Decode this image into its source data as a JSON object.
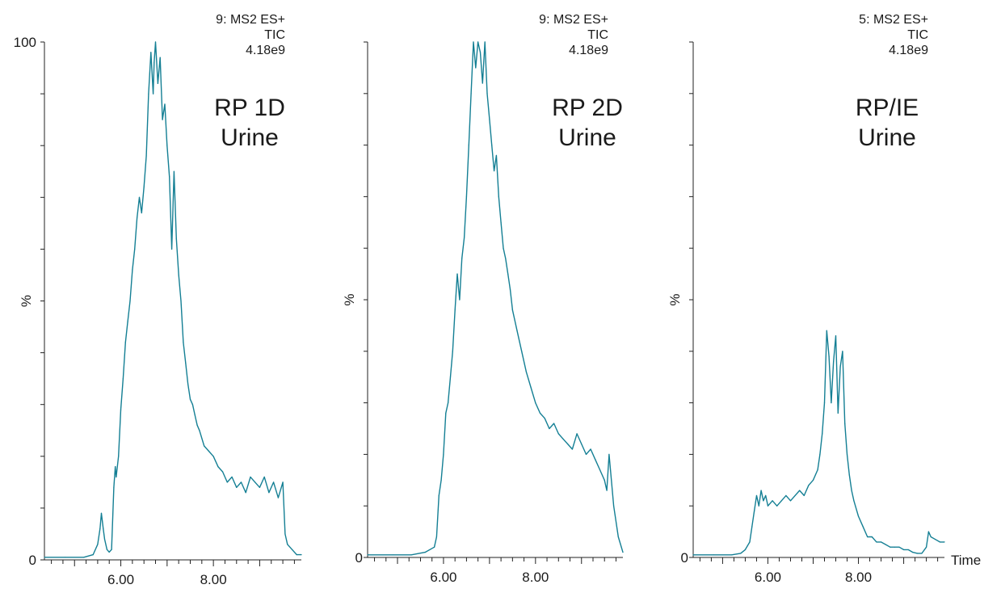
{
  "style": {
    "trace_color": "#147f94",
    "axis_color": "#222222"
  },
  "chart_data": [
    {
      "type": "line",
      "header": [
        "9: MS2 ES+",
        "TIC",
        "4.18e9"
      ],
      "sample_label": [
        "RP 1D",
        "Urine"
      ],
      "ylabel": "%",
      "y_ticks": [
        "100",
        "0"
      ],
      "x_ticks": [
        "6.00",
        "8.00"
      ],
      "xlabel": "",
      "xlim": [
        4.35,
        9.9
      ],
      "ylim": [
        0,
        100
      ],
      "series": [
        {
          "x": [
            4.35,
            4.8,
            5.2,
            5.4,
            5.5,
            5.55,
            5.58,
            5.62,
            5.65,
            5.7,
            5.75,
            5.8,
            5.85,
            5.88,
            5.9,
            5.95,
            6.0,
            6.05,
            6.1,
            6.15,
            6.2,
            6.25,
            6.3,
            6.35,
            6.4,
            6.45,
            6.5,
            6.55,
            6.6,
            6.65,
            6.7,
            6.72,
            6.75,
            6.8,
            6.85,
            6.9,
            6.95,
            7.0,
            7.05,
            7.1,
            7.15,
            7.2,
            7.25,
            7.3,
            7.35,
            7.4,
            7.45,
            7.5,
            7.55,
            7.6,
            7.65,
            7.7,
            7.8,
            7.9,
            8.0,
            8.1,
            8.2,
            8.3,
            8.4,
            8.5,
            8.6,
            8.7,
            8.8,
            8.9,
            9.0,
            9.1,
            9.2,
            9.3,
            9.4,
            9.5,
            9.55,
            9.6,
            9.7,
            9.8,
            9.9
          ],
          "y": [
            0.5,
            0.5,
            0.5,
            1,
            3,
            6,
            9,
            6,
            4,
            2,
            1.5,
            2,
            14,
            18,
            16,
            20,
            29,
            35,
            42,
            46,
            50,
            56,
            60,
            66,
            70,
            67,
            72,
            78,
            90,
            98,
            90,
            96,
            100,
            92,
            97,
            85,
            88,
            80,
            74,
            60,
            75,
            62,
            55,
            50,
            42,
            38,
            34,
            31,
            30,
            28,
            26,
            25,
            22,
            21,
            20,
            18,
            17,
            15,
            16,
            14,
            15,
            13,
            16,
            15,
            14,
            16,
            13,
            15,
            12,
            15,
            5,
            3,
            2,
            1,
            1
          ]
        }
      ]
    },
    {
      "type": "line",
      "header": [
        "9: MS2 ES+",
        "TIC",
        "4.18e9"
      ],
      "sample_label": [
        "RP 2D",
        "Urine"
      ],
      "ylabel": "%",
      "y_ticks": [],
      "x_ticks": [
        "6.00",
        "8.00"
      ],
      "xlabel": "",
      "xlim": [
        4.35,
        9.9
      ],
      "ylim": [
        0,
        100
      ],
      "series": [
        {
          "x": [
            4.35,
            4.9,
            5.3,
            5.6,
            5.8,
            5.85,
            5.9,
            5.95,
            6.0,
            6.05,
            6.1,
            6.15,
            6.2,
            6.25,
            6.3,
            6.35,
            6.4,
            6.45,
            6.5,
            6.55,
            6.6,
            6.65,
            6.7,
            6.75,
            6.8,
            6.85,
            6.9,
            6.95,
            7.0,
            7.05,
            7.1,
            7.15,
            7.2,
            7.25,
            7.3,
            7.35,
            7.4,
            7.45,
            7.5,
            7.6,
            7.7,
            7.8,
            7.9,
            8.0,
            8.1,
            8.2,
            8.3,
            8.4,
            8.5,
            8.6,
            8.7,
            8.8,
            8.9,
            9.0,
            9.1,
            9.2,
            9.3,
            9.4,
            9.5,
            9.55,
            9.6,
            9.7,
            9.8,
            9.9
          ],
          "y": [
            0.5,
            0.5,
            0.5,
            1,
            2,
            4,
            12,
            15,
            20,
            28,
            30,
            35,
            40,
            48,
            55,
            50,
            58,
            62,
            70,
            80,
            90,
            100,
            95,
            100,
            98,
            92,
            100,
            90,
            85,
            80,
            75,
            78,
            70,
            65,
            60,
            58,
            55,
            52,
            48,
            44,
            40,
            36,
            33,
            30,
            28,
            27,
            25,
            26,
            24,
            23,
            22,
            21,
            24,
            22,
            20,
            21,
            19,
            17,
            15,
            13,
            20,
            10,
            4,
            1
          ]
        }
      ]
    },
    {
      "type": "line",
      "header": [
        "5: MS2 ES+",
        "TIC",
        "4.18e9"
      ],
      "sample_label": [
        "RP/IE",
        "Urine"
      ],
      "ylabel": "%",
      "y_ticks": [],
      "x_ticks": [
        "6.00",
        "8.00"
      ],
      "xlabel": "Time",
      "xlim": [
        4.35,
        9.9
      ],
      "ylim": [
        0,
        100
      ],
      "series": [
        {
          "x": [
            4.35,
            4.8,
            5.2,
            5.4,
            5.5,
            5.6,
            5.65,
            5.7,
            5.75,
            5.8,
            5.85,
            5.9,
            5.95,
            6.0,
            6.1,
            6.2,
            6.3,
            6.4,
            6.5,
            6.6,
            6.7,
            6.8,
            6.9,
            7.0,
            7.1,
            7.15,
            7.2,
            7.25,
            7.3,
            7.35,
            7.4,
            7.45,
            7.5,
            7.55,
            7.6,
            7.65,
            7.7,
            7.75,
            7.8,
            7.85,
            7.9,
            8.0,
            8.1,
            8.2,
            8.3,
            8.4,
            8.5,
            8.6,
            8.7,
            8.8,
            8.9,
            9.0,
            9.1,
            9.2,
            9.3,
            9.4,
            9.5,
            9.55,
            9.6,
            9.7,
            9.8,
            9.9
          ],
          "y": [
            0.5,
            0.5,
            0.5,
            0.8,
            1.5,
            3,
            6,
            9,
            12,
            10,
            13,
            11,
            12,
            10,
            11,
            10,
            11,
            12,
            11,
            12,
            13,
            12,
            14,
            15,
            17,
            20,
            24,
            30,
            44,
            39,
            30,
            38,
            43,
            28,
            37,
            40,
            26,
            20,
            16,
            13,
            11,
            8,
            6,
            4,
            4,
            3,
            3,
            2.5,
            2,
            2,
            2,
            1.5,
            1.5,
            1,
            0.8,
            0.8,
            2,
            5,
            4,
            3.5,
            3,
            3
          ]
        }
      ]
    }
  ]
}
